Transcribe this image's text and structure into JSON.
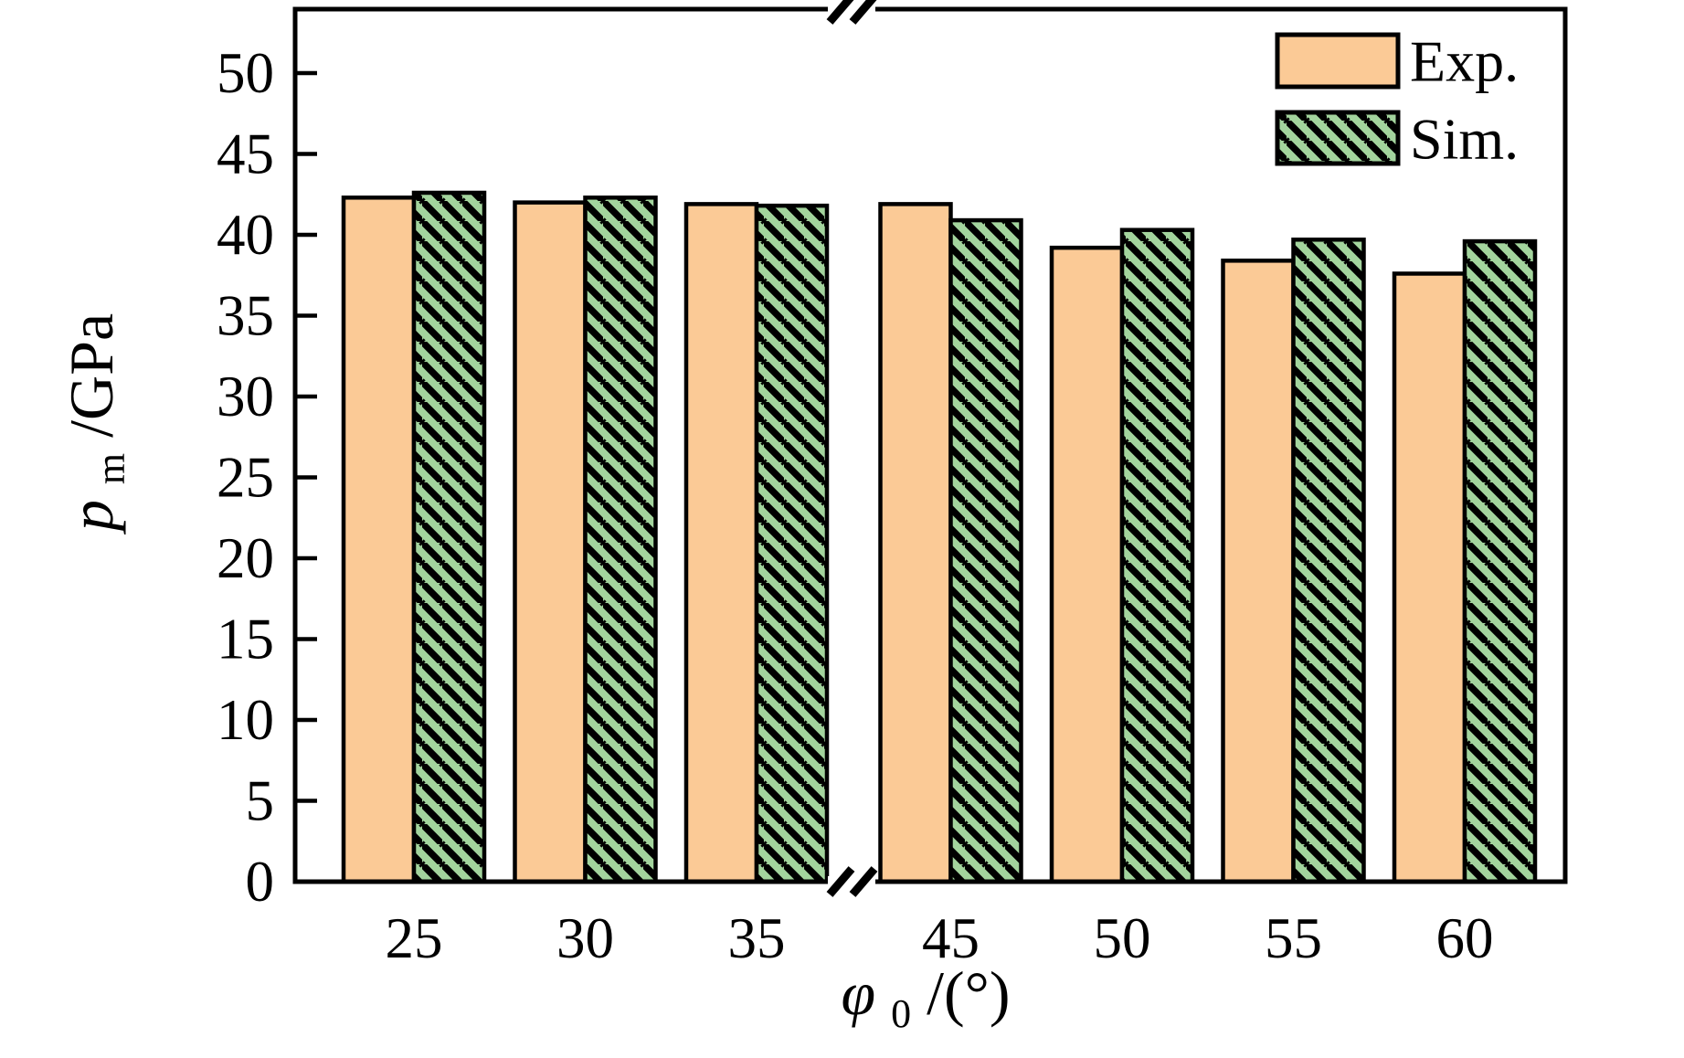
{
  "chart_data": {
    "type": "bar",
    "categories": [
      "25",
      "30",
      "35",
      "45",
      "50",
      "55",
      "60"
    ],
    "series": [
      {
        "name": "Exp.",
        "values": [
          42.3,
          42.0,
          41.9,
          41.9,
          39.2,
          38.4,
          37.6
        ],
        "fill": "#FBCA96",
        "pattern": "solid"
      },
      {
        "name": "Sim.",
        "values": [
          42.6,
          42.3,
          41.8,
          40.9,
          40.3,
          39.7,
          39.6
        ],
        "fill": "#A3D49D",
        "pattern": "diagonal-hatch-black"
      }
    ],
    "title": "",
    "xlabel": "φ0/(°)",
    "ylabel": "pm/GPa",
    "ylim": [
      0,
      54
    ],
    "yticks": [
      "0",
      "5",
      "10",
      "15",
      "20",
      "25",
      "30",
      "35",
      "40",
      "45",
      "50"
    ],
    "grid": false,
    "legend_position": "top-right-inside",
    "axis_break": {
      "axis": "x",
      "between": [
        "35",
        "45"
      ],
      "marker": "double-slash-top-and-bottom"
    },
    "bar_outline_color": "#000000",
    "frame_color": "#000000"
  },
  "labels": {
    "y": {
      "main": "p",
      "sub": "m",
      "rest": "/GPa"
    },
    "x": {
      "main": "φ",
      "sub": "0",
      "rest": "/(°)"
    }
  },
  "legend": {
    "items": [
      {
        "label": "Exp.",
        "swatch": "solid-orange"
      },
      {
        "label": "Sim.",
        "swatch": "green-black-hatch"
      }
    ]
  }
}
